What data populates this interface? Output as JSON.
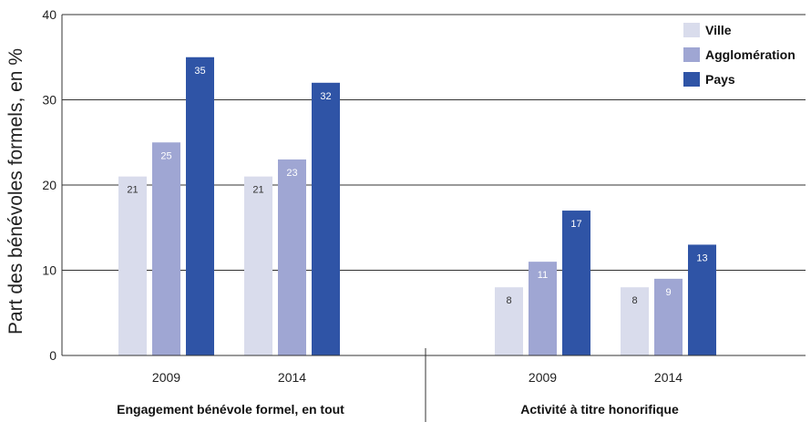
{
  "chart_data": {
    "type": "bar",
    "ylabel": "Part des bénévoles formels, en %",
    "ylim": [
      0,
      40
    ],
    "yticks": [
      0,
      10,
      20,
      30,
      40
    ],
    "grid": true,
    "legend_position": "top-right",
    "series": [
      {
        "name": "Ville",
        "color": "#d9dcec",
        "label_color": "#333333"
      },
      {
        "name": "Agglomération",
        "color": "#9fa6d3",
        "label_color": "#ffffff"
      },
      {
        "name": "Pays",
        "color": "#2f54a6",
        "label_color": "#ffffff"
      }
    ],
    "groups": [
      {
        "label": "Engagement bénévole formel, en tout",
        "subgroups": [
          {
            "category": "2009",
            "values": [
              21,
              25,
              35
            ]
          },
          {
            "category": "2014",
            "values": [
              21,
              23,
              32
            ]
          }
        ]
      },
      {
        "label": "Activité à titre honorifique",
        "subgroups": [
          {
            "category": "2009",
            "values": [
              8,
              11,
              17
            ]
          },
          {
            "category": "2014",
            "values": [
              8,
              9,
              13
            ]
          }
        ]
      }
    ]
  }
}
